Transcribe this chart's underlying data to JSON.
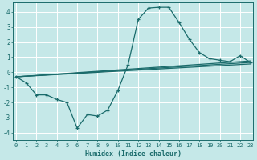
{
  "xlabel": "Humidex (Indice chaleur)",
  "bg_color": "#c5e8e8",
  "line_color": "#1a6b6b",
  "grid_color": "#ffffff",
  "xlim": [
    -0.3,
    23.3
  ],
  "ylim": [
    -4.5,
    4.6
  ],
  "yticks": [
    -4,
    -3,
    -2,
    -1,
    0,
    1,
    2,
    3,
    4
  ],
  "xticks": [
    0,
    1,
    2,
    3,
    4,
    5,
    6,
    7,
    8,
    9,
    10,
    11,
    12,
    13,
    14,
    15,
    16,
    17,
    18,
    19,
    20,
    21,
    22,
    23
  ],
  "main_x": [
    0,
    1,
    2,
    3,
    4,
    5,
    6,
    7,
    8,
    9,
    10,
    11,
    12,
    13,
    14,
    15,
    16,
    17,
    18,
    19,
    20,
    21,
    22,
    23
  ],
  "main_y": [
    -0.3,
    -0.7,
    -1.5,
    -1.5,
    -1.8,
    -2.0,
    -3.7,
    -2.8,
    -2.9,
    -2.5,
    -1.2,
    0.5,
    3.5,
    4.25,
    4.3,
    4.3,
    3.3,
    2.2,
    1.3,
    0.9,
    0.8,
    0.7,
    1.1,
    0.65
  ],
  "reg_lines": [
    {
      "x0": 0,
      "y0": -0.3,
      "x1": 23,
      "y1": 0.55
    },
    {
      "x0": 0,
      "y0": -0.3,
      "x1": 23,
      "y1": 0.65
    },
    {
      "x0": 0,
      "y0": -0.3,
      "x1": 23,
      "y1": 0.75
    }
  ]
}
